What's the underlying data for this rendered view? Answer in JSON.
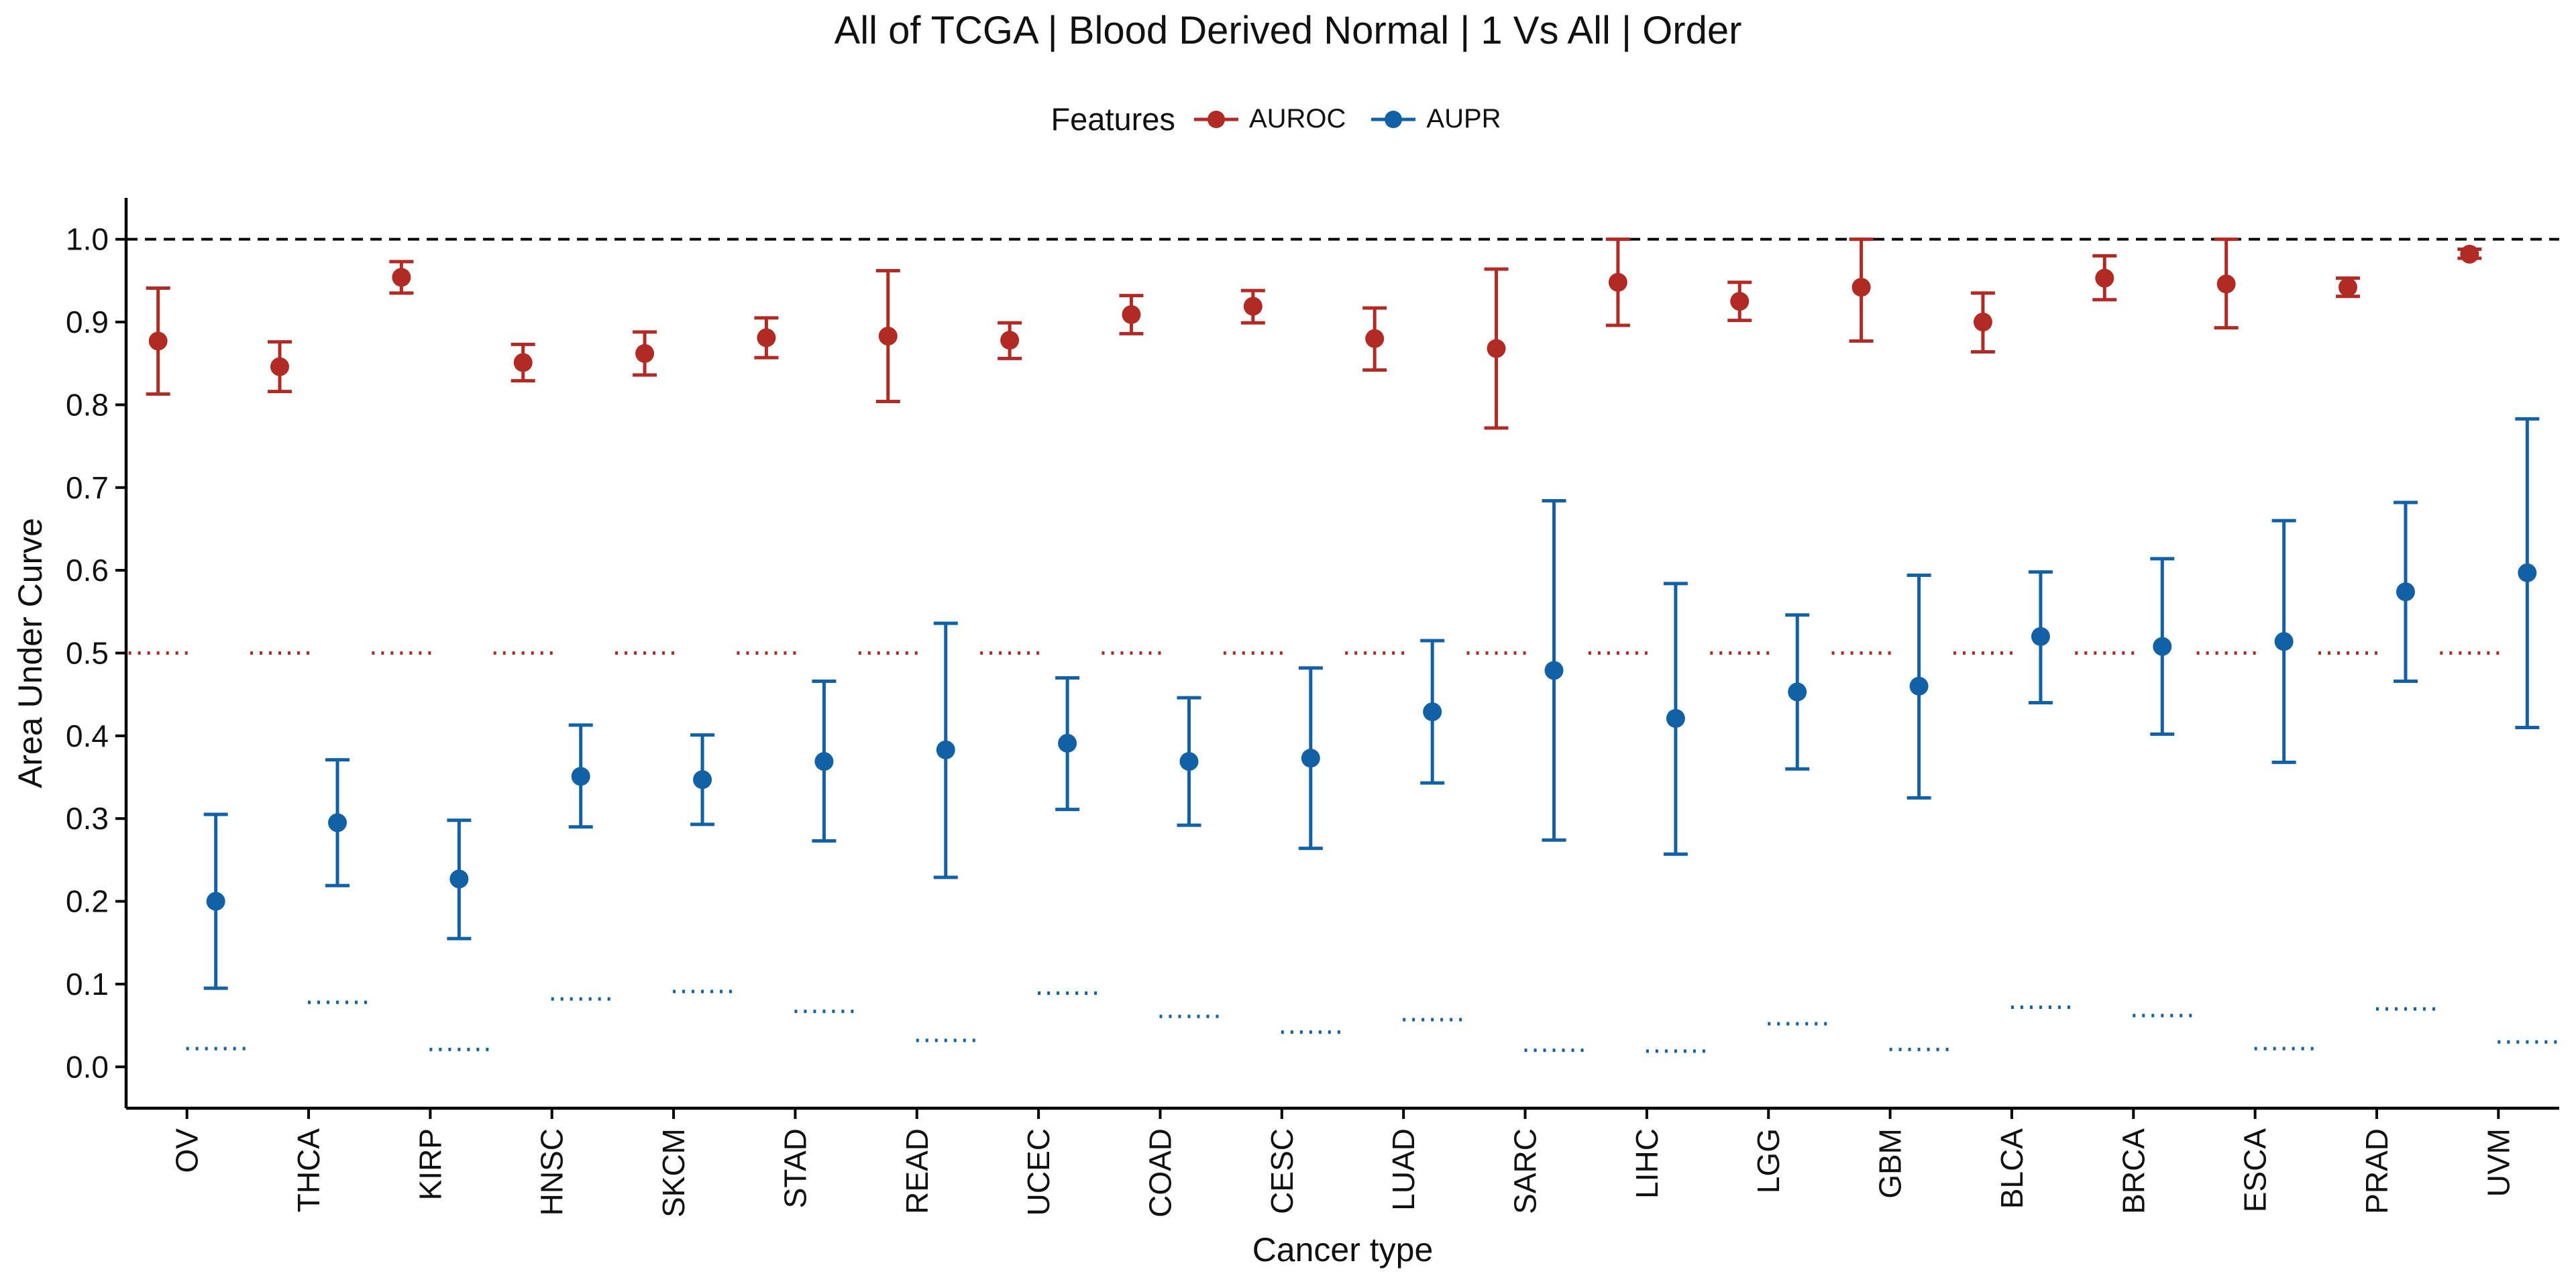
{
  "chart_data": {
    "type": "scatter",
    "title": "All of TCGA | Blood Derived Normal | 1 Vs All | Order",
    "xlabel": "Cancer type",
    "ylabel": "Area Under Curve",
    "ylim": [
      -0.05,
      1.05
    ],
    "yticks": [
      "0.0",
      "0.1",
      "0.2",
      "0.3",
      "0.4",
      "0.5",
      "0.6",
      "0.7",
      "0.8",
      "0.9",
      "1.0"
    ],
    "reference_line": 1.0,
    "legend": {
      "title": "Features",
      "placement": "top"
    },
    "categories": [
      "OV",
      "THCA",
      "KIRP",
      "HNSC",
      "SKCM",
      "STAD",
      "READ",
      "UCEC",
      "COAD",
      "CESC",
      "LUAD",
      "SARC",
      "LIHC",
      "LGG",
      "GBM",
      "BLCA",
      "BRCA",
      "ESCA",
      "PRAD",
      "UVM"
    ],
    "series": [
      {
        "name": "AUROC",
        "color": "#b22a24",
        "values": [
          0.877,
          0.846,
          0.954,
          0.851,
          0.862,
          0.881,
          0.883,
          0.878,
          0.909,
          0.919,
          0.88,
          0.868,
          0.948,
          0.925,
          0.942,
          0.9,
          0.953,
          0.946,
          0.942,
          0.982
        ],
        "lower": [
          0.813,
          0.816,
          0.935,
          0.829,
          0.836,
          0.857,
          0.804,
          0.856,
          0.886,
          0.899,
          0.842,
          0.772,
          0.896,
          0.902,
          0.877,
          0.864,
          0.927,
          0.893,
          0.931,
          0.977
        ],
        "upper": [
          0.941,
          0.876,
          0.973,
          0.873,
          0.888,
          0.905,
          0.962,
          0.899,
          0.932,
          0.938,
          0.917,
          0.964,
          1.0,
          0.948,
          1.0,
          0.935,
          0.98,
          1.0,
          0.953,
          0.988
        ],
        "baseline": [
          0.5,
          0.5,
          0.5,
          0.5,
          0.5,
          0.5,
          0.5,
          0.5,
          0.5,
          0.5,
          0.5,
          0.5,
          0.5,
          0.5,
          0.5,
          0.5,
          0.5,
          0.5,
          0.5,
          0.5
        ]
      },
      {
        "name": "AUPR",
        "color": "#1261a6",
        "values": [
          0.2,
          0.295,
          0.227,
          0.351,
          0.347,
          0.369,
          0.383,
          0.391,
          0.369,
          0.373,
          0.429,
          0.479,
          0.421,
          0.453,
          0.46,
          0.52,
          0.508,
          0.514,
          0.574,
          0.597
        ],
        "lower": [
          0.095,
          0.219,
          0.155,
          0.29,
          0.293,
          0.273,
          0.229,
          0.311,
          0.292,
          0.264,
          0.343,
          0.274,
          0.257,
          0.36,
          0.325,
          0.44,
          0.402,
          0.368,
          0.466,
          0.41
        ],
        "upper": [
          0.305,
          0.371,
          0.298,
          0.413,
          0.401,
          0.466,
          0.536,
          0.47,
          0.446,
          0.482,
          0.515,
          0.684,
          0.584,
          0.546,
          0.594,
          0.598,
          0.614,
          0.66,
          0.682,
          0.783
        ],
        "baseline": [
          0.022,
          0.078,
          0.021,
          0.082,
          0.091,
          0.067,
          0.032,
          0.089,
          0.061,
          0.042,
          0.057,
          0.02,
          0.019,
          0.052,
          0.021,
          0.072,
          0.062,
          0.022,
          0.07,
          0.03
        ]
      }
    ]
  }
}
